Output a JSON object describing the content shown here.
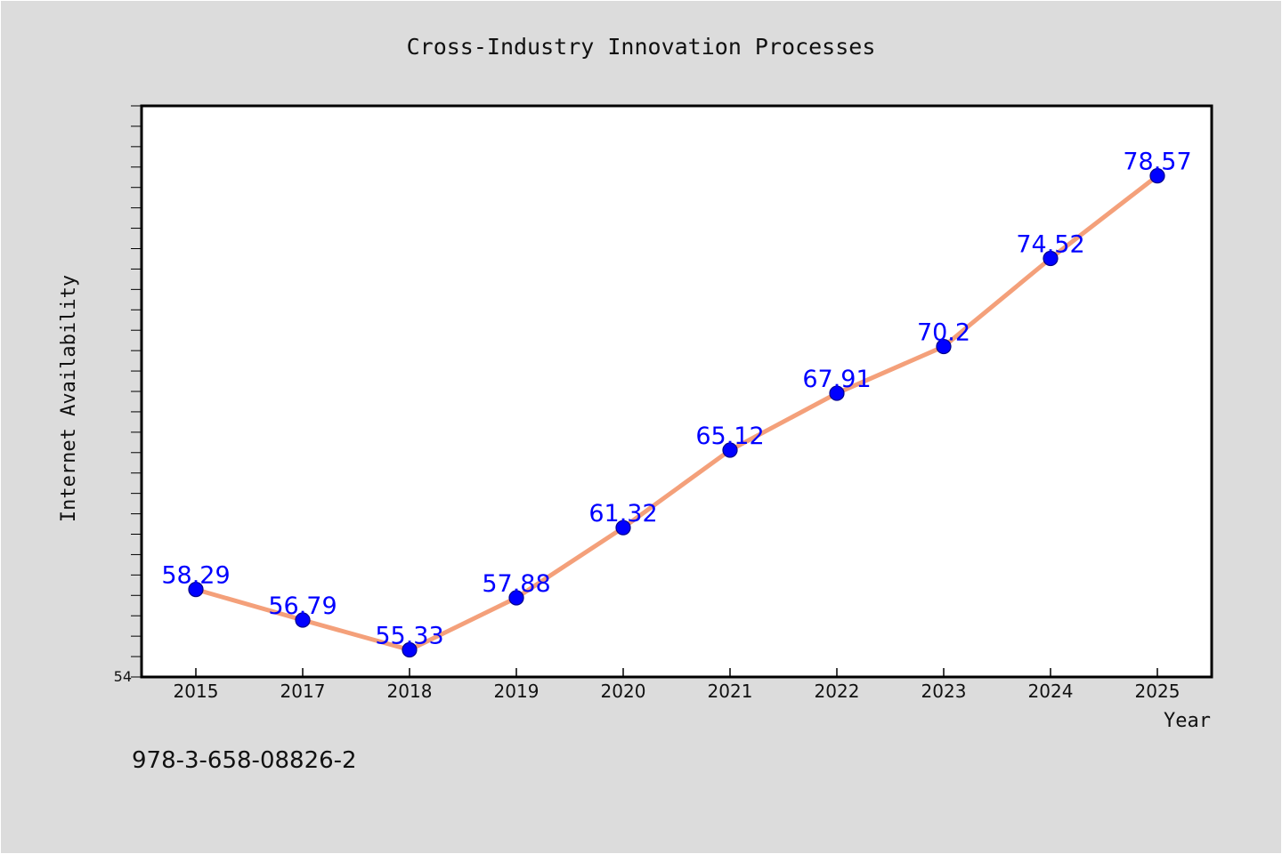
{
  "chart_data": {
    "type": "line",
    "title": "Cross-Industry Innovation Processes",
    "xlabel": "Year",
    "ylabel": "Internet Availability",
    "x": [
      "2015",
      "2017",
      "2018",
      "2019",
      "2020",
      "2021",
      "2022",
      "2023",
      "2024",
      "2025"
    ],
    "series": [
      {
        "values": [
          58.29,
          56.79,
          55.33,
          57.88,
          61.32,
          65.12,
          67.91,
          70.2,
          74.52,
          78.57
        ],
        "data_labels": [
          "58.29",
          "56.79",
          "55.33",
          "57.88",
          "61.32",
          "65.12",
          "67.91",
          "70.2",
          "74.52",
          "78.57"
        ]
      }
    ],
    "ylim": [
      54,
      82
    ],
    "y_tick_labels": [
      "54"
    ],
    "grid": false,
    "legend": "none",
    "line_color": "#f4a07a",
    "marker_color": "#0000ff",
    "label_color": "#0000ff"
  },
  "footer_text": "978-3-658-08826-2"
}
